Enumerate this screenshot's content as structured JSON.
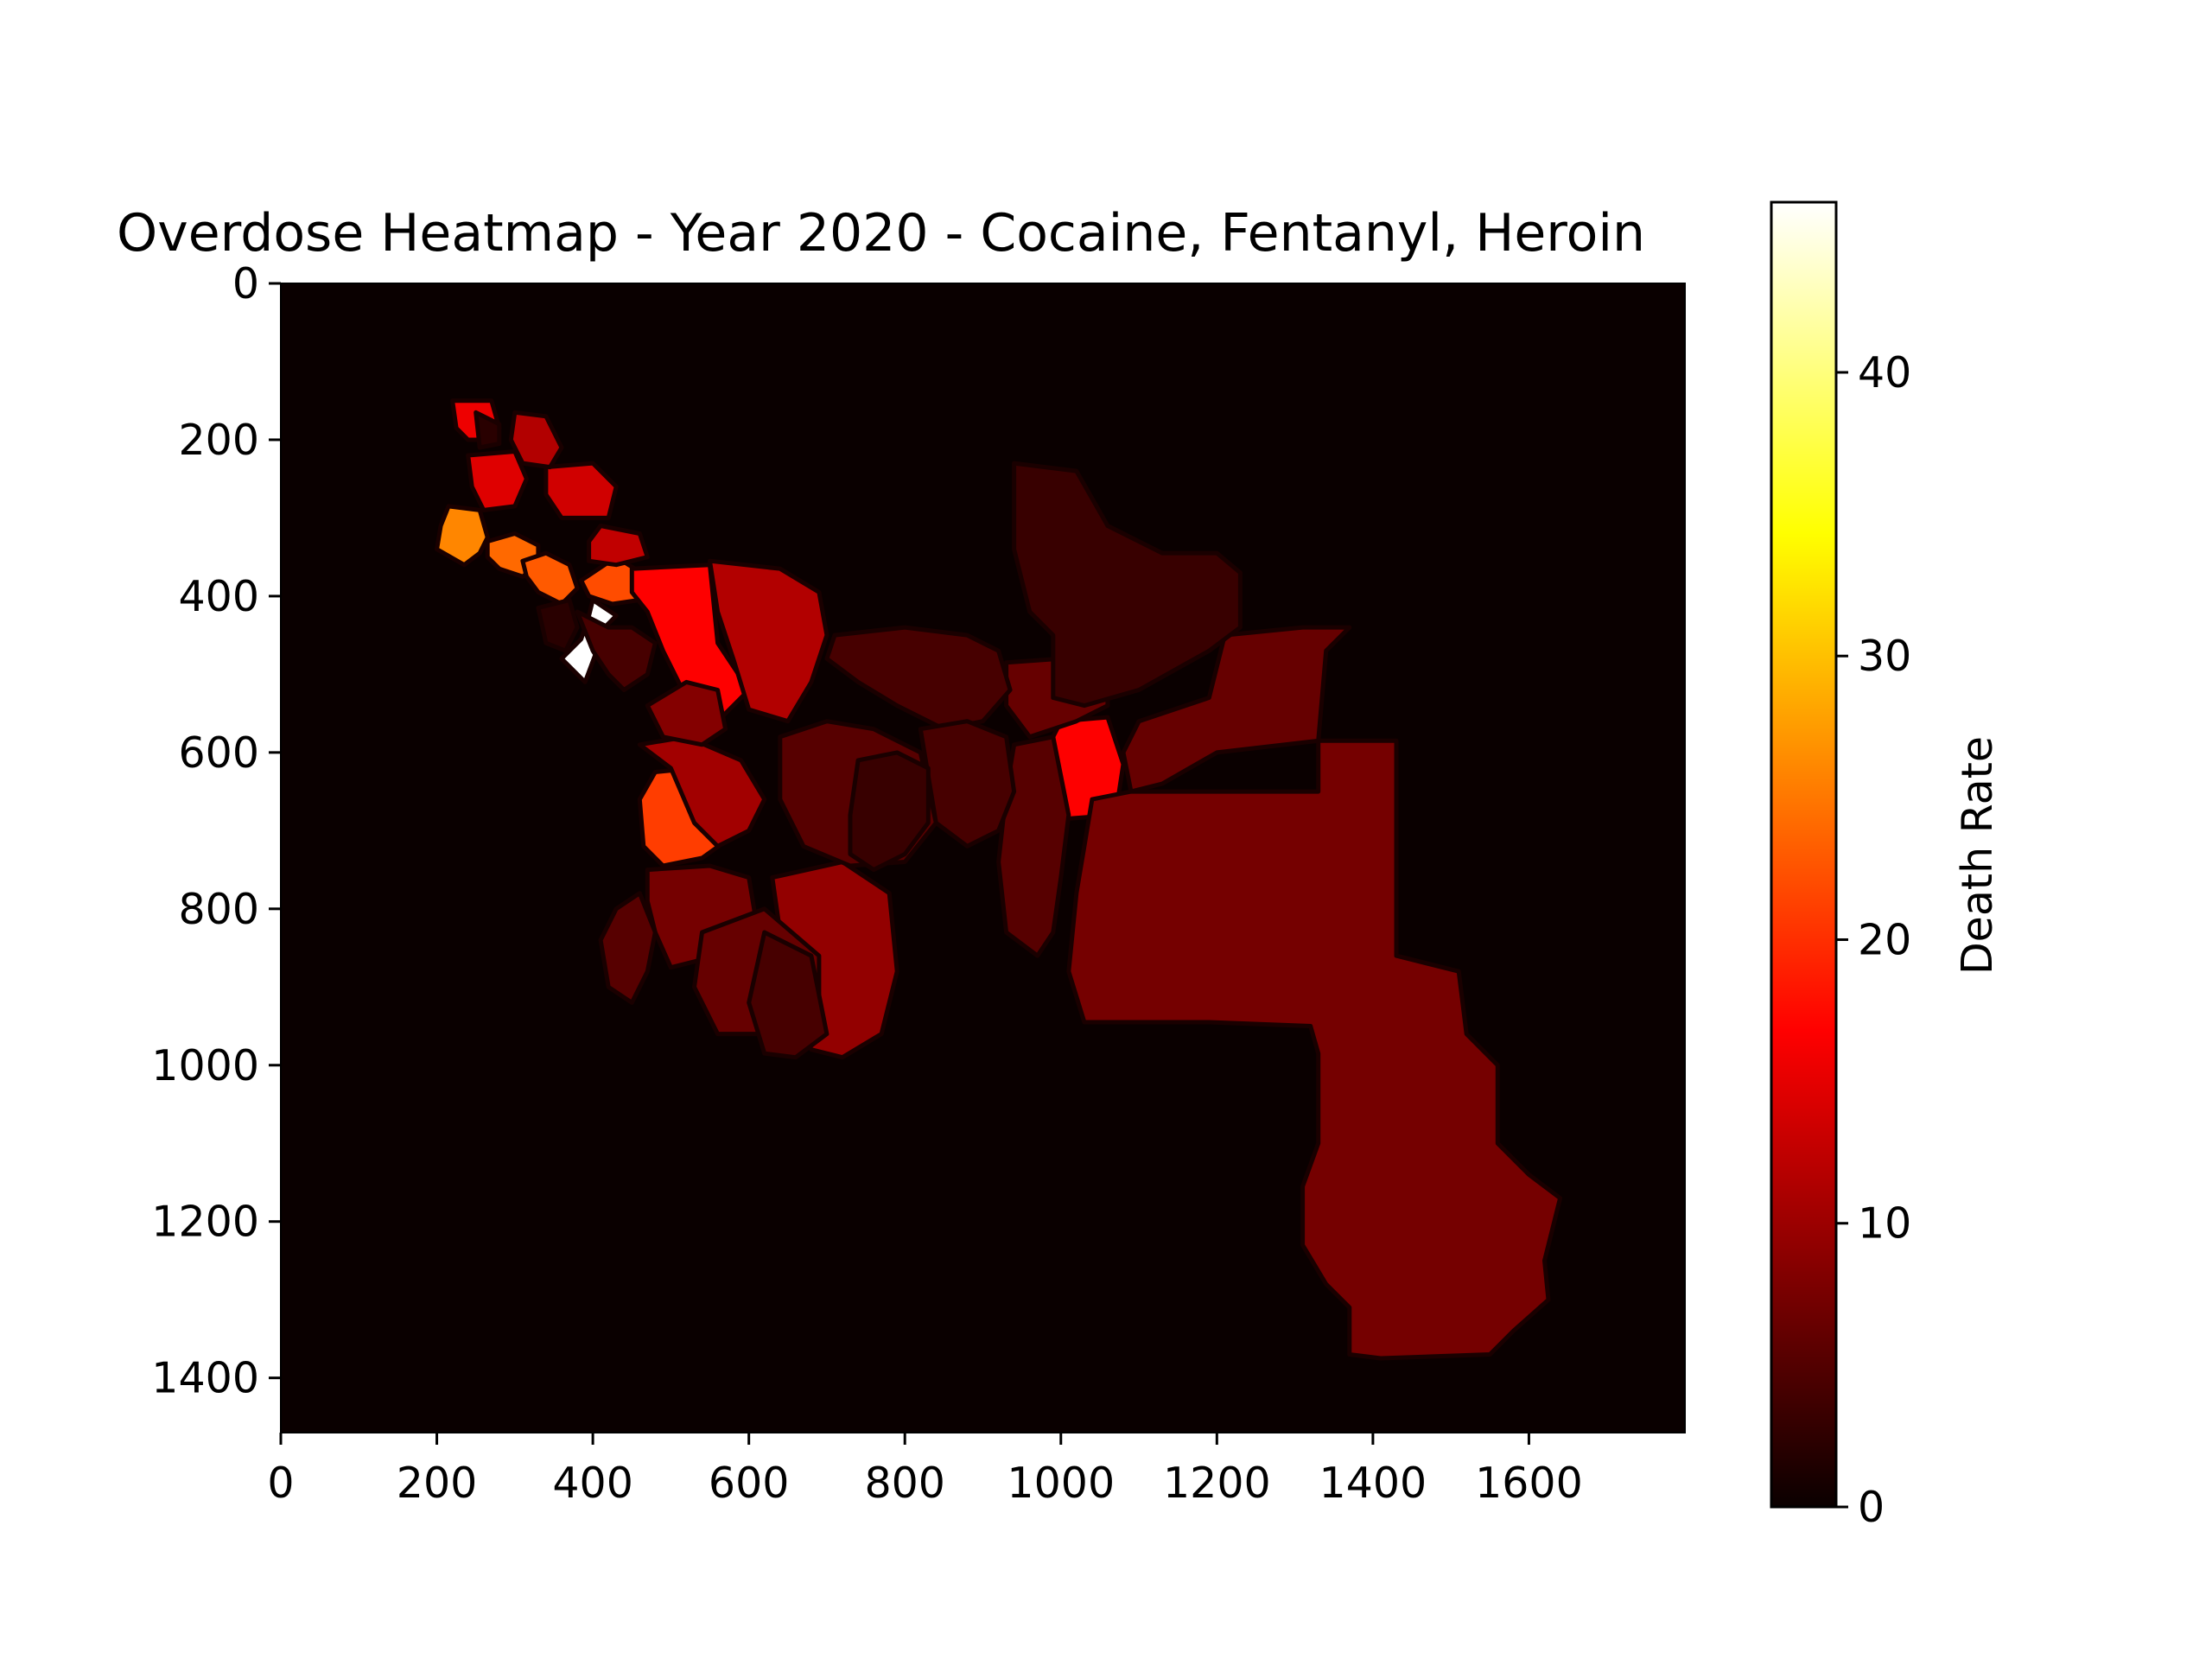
{
  "chart_data": {
    "type": "heatmap",
    "title": "Overdose Heatmap - Year 2020 - Cocaine, Fentanyl, Heroin",
    "xlim": [
      0,
      1800
    ],
    "ylim": [
      1470,
      0
    ],
    "x_ticks": [
      0,
      200,
      400,
      600,
      800,
      1000,
      1200,
      1400,
      1600
    ],
    "y_ticks": [
      0,
      200,
      400,
      600,
      800,
      1000,
      1200,
      1400
    ],
    "grid": false,
    "colormap": "hot",
    "colorbar": {
      "label": "Death Rate",
      "range": [
        0,
        46
      ],
      "ticks": [
        0,
        10,
        20,
        30,
        40
      ]
    },
    "regions": [
      {
        "value": 46,
        "points": [
          [
            400,
            405
          ],
          [
            430,
            425
          ],
          [
            415,
            440
          ],
          [
            405,
            470
          ],
          [
            390,
            510
          ],
          [
            360,
            480
          ],
          [
            385,
            455
          ],
          [
            395,
            425
          ]
        ]
      },
      {
        "value": 26,
        "points": [
          [
            215,
            285
          ],
          [
            255,
            290
          ],
          [
            265,
            325
          ],
          [
            255,
            345
          ],
          [
            235,
            360
          ],
          [
            200,
            340
          ],
          [
            205,
            310
          ]
        ]
      },
      {
        "value": 24,
        "points": [
          [
            265,
            330
          ],
          [
            300,
            320
          ],
          [
            330,
            335
          ],
          [
            330,
            360
          ],
          [
            310,
            375
          ],
          [
            280,
            365
          ],
          [
            265,
            350
          ]
        ]
      },
      {
        "value": 23,
        "points": [
          [
            310,
            355
          ],
          [
            340,
            345
          ],
          [
            370,
            360
          ],
          [
            380,
            390
          ],
          [
            360,
            410
          ],
          [
            330,
            395
          ],
          [
            315,
            375
          ]
        ]
      },
      {
        "value": 22,
        "points": [
          [
            385,
            380
          ],
          [
            430,
            350
          ],
          [
            470,
            375
          ],
          [
            460,
            405
          ],
          [
            425,
            410
          ],
          [
            395,
            400
          ]
        ]
      },
      {
        "value": 21,
        "points": [
          [
            480,
            625
          ],
          [
            530,
            620
          ],
          [
            560,
            660
          ],
          [
            575,
            710
          ],
          [
            540,
            735
          ],
          [
            490,
            745
          ],
          [
            465,
            720
          ],
          [
            460,
            660
          ]
        ]
      },
      {
        "value": 16,
        "points": [
          [
            450,
            365
          ],
          [
            550,
            360
          ],
          [
            560,
            460
          ],
          [
            600,
            520
          ],
          [
            560,
            560
          ],
          [
            520,
            530
          ],
          [
            490,
            470
          ],
          [
            470,
            420
          ],
          [
            450,
            395
          ]
        ]
      },
      {
        "value": 15,
        "points": [
          [
            220,
            150
          ],
          [
            270,
            150
          ],
          [
            280,
            185
          ],
          [
            260,
            200
          ],
          [
            240,
            200
          ],
          [
            225,
            185
          ]
        ]
      },
      {
        "value": 14,
        "points": [
          [
            240,
            220
          ],
          [
            300,
            215
          ],
          [
            315,
            250
          ],
          [
            300,
            285
          ],
          [
            260,
            290
          ],
          [
            245,
            260
          ]
        ]
      },
      {
        "value": 16,
        "points": [
          [
            1000,
            560
          ],
          [
            1060,
            555
          ],
          [
            1080,
            615
          ],
          [
            1070,
            680
          ],
          [
            1005,
            685
          ],
          [
            975,
            650
          ],
          [
            980,
            600
          ]
        ]
      },
      {
        "value": 13,
        "points": [
          [
            340,
            235
          ],
          [
            400,
            230
          ],
          [
            430,
            260
          ],
          [
            420,
            300
          ],
          [
            360,
            300
          ],
          [
            340,
            270
          ]
        ]
      },
      {
        "value": 12,
        "points": [
          [
            410,
            310
          ],
          [
            460,
            320
          ],
          [
            470,
            350
          ],
          [
            430,
            360
          ],
          [
            395,
            355
          ],
          [
            395,
            330
          ]
        ]
      },
      {
        "value": 11,
        "points": [
          [
            550,
            355
          ],
          [
            640,
            365
          ],
          [
            690,
            395
          ],
          [
            700,
            450
          ],
          [
            680,
            510
          ],
          [
            650,
            560
          ],
          [
            600,
            545
          ],
          [
            580,
            480
          ],
          [
            560,
            420
          ]
        ]
      },
      {
        "value": 11,
        "points": [
          [
            300,
            165
          ],
          [
            340,
            170
          ],
          [
            360,
            210
          ],
          [
            345,
            235
          ],
          [
            310,
            230
          ],
          [
            295,
            200
          ]
        ]
      },
      {
        "value": 10,
        "points": [
          [
            460,
            590
          ],
          [
            520,
            580
          ],
          [
            590,
            610
          ],
          [
            620,
            660
          ],
          [
            600,
            700
          ],
          [
            560,
            720
          ],
          [
            530,
            690
          ],
          [
            500,
            620
          ]
        ]
      },
      {
        "value": 9,
        "points": [
          [
            630,
            760
          ],
          [
            720,
            740
          ],
          [
            780,
            780
          ],
          [
            790,
            880
          ],
          [
            770,
            960
          ],
          [
            720,
            990
          ],
          [
            680,
            980
          ],
          [
            650,
            900
          ]
        ]
      },
      {
        "value": 8,
        "points": [
          [
            470,
            540
          ],
          [
            520,
            510
          ],
          [
            560,
            520
          ],
          [
            570,
            570
          ],
          [
            540,
            590
          ],
          [
            490,
            580
          ]
        ]
      },
      {
        "value": 7,
        "points": [
          [
            470,
            750
          ],
          [
            550,
            745
          ],
          [
            600,
            760
          ],
          [
            610,
            820
          ],
          [
            560,
            860
          ],
          [
            500,
            875
          ],
          [
            480,
            830
          ],
          [
            470,
            790
          ]
        ]
      },
      {
        "value": 7,
        "points": [
          [
            1040,
            660
          ],
          [
            1090,
            650
          ],
          [
            1200,
            650
          ],
          [
            1330,
            650
          ],
          [
            1330,
            585
          ],
          [
            1430,
            585
          ],
          [
            1430,
            860
          ],
          [
            1510,
            880
          ],
          [
            1520,
            960
          ],
          [
            1560,
            1000
          ],
          [
            1560,
            1100
          ],
          [
            1600,
            1140
          ],
          [
            1640,
            1170
          ],
          [
            1620,
            1250
          ],
          [
            1625,
            1300
          ],
          [
            1580,
            1340
          ],
          [
            1550,
            1370
          ],
          [
            1410,
            1375
          ],
          [
            1370,
            1370
          ],
          [
            1370,
            1310
          ],
          [
            1340,
            1280
          ],
          [
            1310,
            1230
          ],
          [
            1310,
            1155
          ],
          [
            1330,
            1100
          ],
          [
            1330,
            985
          ],
          [
            1320,
            950
          ],
          [
            1190,
            945
          ],
          [
            1030,
            945
          ],
          [
            1010,
            880
          ],
          [
            1020,
            780
          ],
          [
            1030,
            720
          ]
        ]
      },
      {
        "value": 6,
        "points": [
          [
            930,
            485
          ],
          [
            1000,
            480
          ],
          [
            1060,
            490
          ],
          [
            1060,
            540
          ],
          [
            1020,
            560
          ],
          [
            960,
            580
          ],
          [
            930,
            540
          ]
        ]
      },
      {
        "value": 6,
        "points": [
          [
            1210,
            450
          ],
          [
            1310,
            440
          ],
          [
            1370,
            440
          ],
          [
            1340,
            470
          ],
          [
            1330,
            585
          ],
          [
            1200,
            600
          ],
          [
            1130,
            640
          ],
          [
            1090,
            650
          ],
          [
            1080,
            600
          ],
          [
            1100,
            560
          ],
          [
            1190,
            530
          ]
        ]
      },
      {
        "value": 6,
        "points": [
          [
            540,
            830
          ],
          [
            620,
            800
          ],
          [
            690,
            860
          ],
          [
            690,
            920
          ],
          [
            640,
            960
          ],
          [
            560,
            960
          ],
          [
            530,
            900
          ]
        ]
      },
      {
        "value": 5,
        "points": [
          [
            640,
            580
          ],
          [
            700,
            560
          ],
          [
            760,
            570
          ],
          [
            820,
            600
          ],
          [
            840,
            690
          ],
          [
            800,
            740
          ],
          [
            730,
            745
          ],
          [
            670,
            720
          ],
          [
            640,
            660
          ]
        ]
      },
      {
        "value": 5,
        "points": [
          [
            940,
            590
          ],
          [
            990,
            580
          ],
          [
            1010,
            680
          ],
          [
            1000,
            760
          ],
          [
            990,
            830
          ],
          [
            970,
            860
          ],
          [
            930,
            830
          ],
          [
            920,
            740
          ],
          [
            930,
            650
          ]
        ]
      },
      {
        "value": 5,
        "points": [
          [
            460,
            780
          ],
          [
            480,
            830
          ],
          [
            470,
            880
          ],
          [
            450,
            920
          ],
          [
            420,
            900
          ],
          [
            410,
            840
          ],
          [
            430,
            800
          ]
        ]
      },
      {
        "value": 4,
        "points": [
          [
            710,
            450
          ],
          [
            800,
            440
          ],
          [
            880,
            450
          ],
          [
            920,
            470
          ],
          [
            935,
            520
          ],
          [
            900,
            560
          ],
          [
            850,
            570
          ],
          [
            790,
            540
          ],
          [
            740,
            510
          ],
          [
            700,
            480
          ]
        ]
      },
      {
        "value": 4,
        "points": [
          [
            820,
            570
          ],
          [
            880,
            560
          ],
          [
            930,
            580
          ],
          [
            940,
            650
          ],
          [
            920,
            700
          ],
          [
            880,
            720
          ],
          [
            840,
            690
          ]
        ]
      },
      {
        "value": 4,
        "points": [
          [
            620,
            830
          ],
          [
            680,
            860
          ],
          [
            700,
            960
          ],
          [
            660,
            990
          ],
          [
            620,
            985
          ],
          [
            600,
            920
          ]
        ]
      },
      {
        "value": 4,
        "points": [
          [
            380,
            420
          ],
          [
            420,
            440
          ],
          [
            450,
            440
          ],
          [
            480,
            460
          ],
          [
            470,
            500
          ],
          [
            440,
            520
          ],
          [
            420,
            500
          ],
          [
            400,
            470
          ]
        ]
      },
      {
        "value": 3,
        "points": [
          [
            940,
            230
          ],
          [
            1020,
            240
          ],
          [
            1060,
            310
          ],
          [
            1100,
            330
          ],
          [
            1130,
            345
          ],
          [
            1200,
            345
          ],
          [
            1230,
            370
          ],
          [
            1230,
            440
          ],
          [
            1190,
            470
          ],
          [
            1100,
            520
          ],
          [
            1030,
            540
          ],
          [
            990,
            530
          ],
          [
            990,
            450
          ],
          [
            960,
            420
          ],
          [
            940,
            340
          ]
        ]
      },
      {
        "value": 3,
        "points": [
          [
            740,
            610
          ],
          [
            790,
            600
          ],
          [
            830,
            620
          ],
          [
            830,
            690
          ],
          [
            800,
            730
          ],
          [
            760,
            750
          ],
          [
            730,
            730
          ],
          [
            730,
            680
          ]
        ]
      },
      {
        "value": 2,
        "points": [
          [
            330,
            415
          ],
          [
            370,
            405
          ],
          [
            380,
            440
          ],
          [
            365,
            470
          ],
          [
            340,
            460
          ]
        ]
      },
      {
        "value": 2,
        "points": [
          [
            250,
            165
          ],
          [
            280,
            180
          ],
          [
            280,
            205
          ],
          [
            255,
            210
          ]
        ]
      }
    ]
  }
}
